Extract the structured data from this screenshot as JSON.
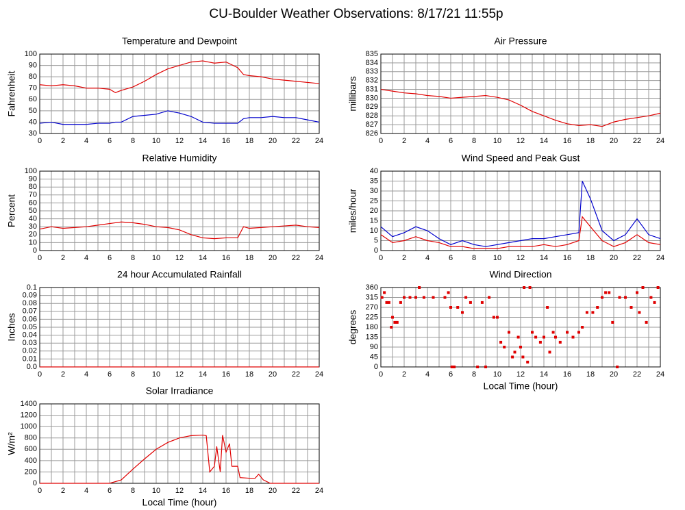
{
  "title": "CU-Boulder Weather Observations: 8/17/21 11:55p",
  "chart_data": [
    {
      "type": "line",
      "title": "Temperature and Dewpoint",
      "y_label": "Fahrenheit",
      "x": [
        0,
        1,
        2,
        3,
        4,
        5,
        6,
        6.5,
        7,
        8,
        9,
        10,
        11,
        12,
        13,
        14,
        15,
        16,
        17,
        17.5,
        18,
        19,
        20,
        21,
        22,
        23,
        24
      ],
      "series": [
        {
          "color": "#e00000",
          "values": [
            73,
            72,
            73,
            72,
            70,
            70,
            69,
            66,
            68,
            71,
            76,
            82,
            87,
            90,
            93,
            94,
            92,
            93,
            88,
            82,
            81,
            80,
            78,
            77,
            76,
            75,
            74
          ]
        },
        {
          "color": "#0000cc",
          "values": [
            39,
            40,
            38,
            38,
            38,
            39,
            39,
            40,
            40,
            45,
            46,
            47,
            50,
            48,
            45,
            40,
            39,
            39,
            39,
            43,
            44,
            44,
            45,
            44,
            44,
            42,
            40
          ]
        }
      ],
      "xlim": [
        0,
        24
      ],
      "xticks": [
        0,
        2,
        4,
        6,
        8,
        10,
        12,
        14,
        16,
        18,
        20,
        22,
        24
      ],
      "x_minor_ticks": [
        1,
        3,
        5,
        7,
        9,
        11,
        13,
        15,
        17,
        19,
        21,
        23
      ],
      "ylim": [
        30,
        100
      ],
      "yticks": [
        30,
        40,
        50,
        60,
        70,
        80,
        90,
        100
      ],
      "grid": true
    },
    {
      "type": "line",
      "title": "Air Pressure",
      "y_label": "millibars",
      "x": [
        0,
        1,
        2,
        3,
        4,
        5,
        6,
        7,
        8,
        9,
        10,
        11,
        12,
        13,
        14,
        15,
        16,
        17,
        18,
        19,
        20,
        21,
        22,
        23,
        24
      ],
      "series": [
        {
          "color": "#e00000",
          "values": [
            831,
            830.8,
            830.6,
            830.5,
            830.3,
            830.2,
            830,
            830.1,
            830.2,
            830.3,
            830.1,
            829.8,
            829.2,
            828.5,
            828,
            827.5,
            827.1,
            826.9,
            827,
            826.8,
            827.3,
            827.6,
            827.8,
            828,
            828.3
          ]
        }
      ],
      "xlim": [
        0,
        24
      ],
      "xticks": [
        0,
        2,
        4,
        6,
        8,
        10,
        12,
        14,
        16,
        18,
        20,
        22,
        24
      ],
      "x_minor_ticks": [
        1,
        3,
        5,
        7,
        9,
        11,
        13,
        15,
        17,
        19,
        21,
        23
      ],
      "ylim": [
        826,
        835
      ],
      "yticks": [
        826,
        827,
        828,
        829,
        830,
        831,
        832,
        833,
        834,
        835
      ],
      "grid": true
    },
    {
      "type": "line",
      "title": "Relative Humidity",
      "y_label": "Percent",
      "x": [
        0,
        1,
        2,
        3,
        4,
        5,
        6,
        7,
        8,
        9,
        10,
        11,
        12,
        13,
        14,
        15,
        16,
        17,
        17.5,
        18,
        19,
        20,
        21,
        22,
        23,
        24
      ],
      "series": [
        {
          "color": "#e00000",
          "values": [
            27,
            30,
            28,
            29,
            30,
            32,
            34,
            36,
            35,
            33,
            30,
            29,
            26,
            20,
            16,
            15,
            16,
            16,
            30,
            28,
            29,
            30,
            31,
            32,
            30,
            29
          ]
        }
      ],
      "xlim": [
        0,
        24
      ],
      "xticks": [
        0,
        2,
        4,
        6,
        8,
        10,
        12,
        14,
        16,
        18,
        20,
        22,
        24
      ],
      "x_minor_ticks": [
        1,
        3,
        5,
        7,
        9,
        11,
        13,
        15,
        17,
        19,
        21,
        23
      ],
      "ylim": [
        0,
        100
      ],
      "yticks": [
        0,
        10,
        20,
        30,
        40,
        50,
        60,
        70,
        80,
        90,
        100
      ],
      "grid": true
    },
    {
      "type": "line",
      "title": "Wind Speed and Peak Gust",
      "y_label": "miles/hour",
      "x": [
        0,
        1,
        2,
        3,
        4,
        5,
        6,
        7,
        8,
        9,
        10,
        11,
        12,
        13,
        14,
        15,
        16,
        17,
        17.3,
        18,
        19,
        20,
        21,
        22,
        23,
        24
      ],
      "series": [
        {
          "color": "#0000cc",
          "values": [
            12,
            7,
            9,
            12,
            10,
            6,
            3,
            5,
            3,
            2,
            3,
            4,
            5,
            6,
            6,
            7,
            8,
            9,
            35,
            26,
            10,
            5,
            8,
            16,
            8,
            6
          ]
        },
        {
          "color": "#e00000",
          "values": [
            8,
            4,
            5,
            7,
            5,
            4,
            2,
            2,
            1,
            1,
            1,
            2,
            2,
            2,
            3,
            2,
            3,
            5,
            17,
            12,
            5,
            2,
            4,
            8,
            4,
            3
          ]
        }
      ],
      "xlim": [
        0,
        24
      ],
      "xticks": [
        0,
        2,
        4,
        6,
        8,
        10,
        12,
        14,
        16,
        18,
        20,
        22,
        24
      ],
      "x_minor_ticks": [
        1,
        3,
        5,
        7,
        9,
        11,
        13,
        15,
        17,
        19,
        21,
        23
      ],
      "ylim": [
        0,
        40
      ],
      "yticks": [
        0,
        5,
        10,
        15,
        20,
        25,
        30,
        35,
        40
      ],
      "grid": true
    },
    {
      "type": "line",
      "title": "24 hour Accumulated Rainfall",
      "y_label": "Inches",
      "x": [
        0,
        24
      ],
      "series": [
        {
          "color": "#e00000",
          "values": [
            0,
            0
          ]
        }
      ],
      "xlim": [
        0,
        24
      ],
      "xticks": [
        0,
        2,
        4,
        6,
        8,
        10,
        12,
        14,
        16,
        18,
        20,
        22,
        24
      ],
      "x_minor_ticks": [
        1,
        3,
        5,
        7,
        9,
        11,
        13,
        15,
        17,
        19,
        21,
        23
      ],
      "ylim": [
        0,
        0.1
      ],
      "yticks": [
        {
          "value": 0,
          "label": "0.0"
        },
        0.01,
        0.02,
        0.03,
        0.04,
        0.05,
        0.06,
        0.07,
        0.08,
        0.09,
        0.1
      ],
      "grid": true
    },
    {
      "type": "scatter",
      "title": "Wind Direction",
      "y_label": "degrees",
      "x_label": "Local Time (hour)",
      "color": "#e00000",
      "x": [
        0.1,
        0.3,
        0.5,
        0.7,
        0.9,
        1,
        1.2,
        1.4,
        1.7,
        2,
        2.5,
        3,
        3.3,
        3.7,
        4.5,
        5.5,
        5.8,
        6,
        6.1,
        6.3,
        6.6,
        7,
        7.3,
        7.7,
        8.3,
        8.7,
        9,
        9.3,
        9.7,
        10,
        10.3,
        10.6,
        11,
        11.3,
        11.5,
        11.8,
        12,
        12.2,
        12.3,
        12.6,
        12.8,
        13,
        13.3,
        13.7,
        14,
        14.3,
        14.5,
        14.8,
        15,
        15.4,
        16,
        16.5,
        17,
        17.3,
        17.7,
        18.2,
        18.6,
        19,
        19.3,
        19.6,
        19.9,
        20.3,
        20.5,
        21,
        21.5,
        22,
        22.2,
        22.5,
        22.8,
        23.2,
        23.5,
        23.8
      ],
      "values": [
        315,
        337,
        292,
        292,
        180,
        225,
        202,
        202,
        292,
        315,
        315,
        315,
        360,
        315,
        315,
        315,
        337,
        270,
        0,
        0,
        270,
        247,
        315,
        292,
        0,
        292,
        0,
        315,
        225,
        225,
        112,
        90,
        157,
        45,
        67,
        135,
        90,
        45,
        360,
        22,
        360,
        157,
        135,
        112,
        135,
        270,
        67,
        157,
        135,
        112,
        157,
        135,
        157,
        180,
        247,
        247,
        270,
        315,
        337,
        337,
        202,
        0,
        315,
        315,
        270,
        337,
        247,
        360,
        202,
        315,
        292,
        360
      ],
      "xlim": [
        0,
        24
      ],
      "xticks": [
        0,
        2,
        4,
        6,
        8,
        10,
        12,
        14,
        16,
        18,
        20,
        22,
        24
      ],
      "x_minor_ticks": [
        1,
        3,
        5,
        7,
        9,
        11,
        13,
        15,
        17,
        19,
        21,
        23
      ],
      "ylim": [
        0,
        360
      ],
      "yticks": [
        0,
        45,
        90,
        135,
        180,
        225,
        270,
        315,
        360
      ],
      "grid": true
    },
    {
      "type": "line",
      "title": "Solar Irradiance",
      "y_label": "W/m²",
      "x_label": "Local Time (hour)",
      "x": [
        0,
        6,
        7,
        8,
        9,
        10,
        11,
        12,
        13,
        14,
        14.3,
        14.6,
        15,
        15.2,
        15.5,
        15.7,
        16,
        16.3,
        16.5,
        17,
        17.2,
        18,
        18.5,
        18.8,
        19.2,
        19.8,
        24
      ],
      "series": [
        {
          "color": "#e00000",
          "values": [
            0,
            0,
            60,
            250,
            430,
            600,
            720,
            800,
            840,
            850,
            840,
            200,
            300,
            650,
            200,
            850,
            550,
            700,
            300,
            300,
            100,
            90,
            90,
            160,
            60,
            0,
            0
          ]
        }
      ],
      "xlim": [
        0,
        24
      ],
      "xticks": [
        0,
        2,
        4,
        6,
        8,
        10,
        12,
        14,
        16,
        18,
        20,
        22,
        24
      ],
      "x_minor_ticks": [
        1,
        3,
        5,
        7,
        9,
        11,
        13,
        15,
        17,
        19,
        21,
        23
      ],
      "ylim": [
        0,
        1400
      ],
      "yticks": [
        0,
        200,
        400,
        600,
        800,
        1000,
        1200,
        1400
      ],
      "grid": true
    }
  ]
}
